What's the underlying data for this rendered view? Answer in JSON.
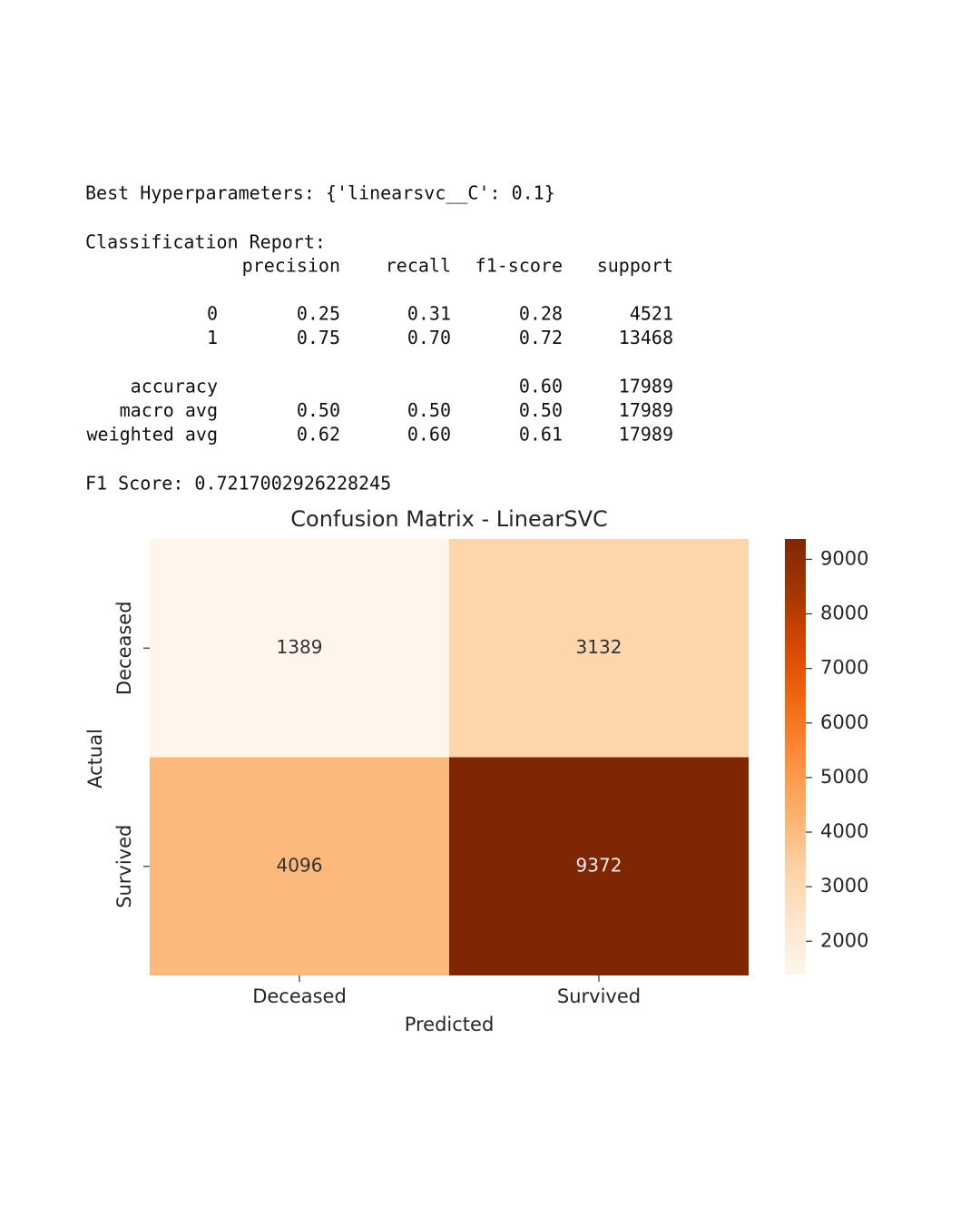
{
  "output": {
    "best_params": "Best Hyperparameters: {'linearsvc__C': 0.1}",
    "report_title": "Classification Report:",
    "report_columns": [
      "precision",
      "recall",
      "f1-score",
      "support"
    ],
    "report_rows": [
      [
        "0",
        "0.25",
        "0.31",
        "0.28",
        "4521"
      ],
      [
        "1",
        "0.75",
        "0.70",
        "0.72",
        "13468"
      ],
      [
        "accuracy",
        null,
        null,
        "0.60",
        "17989"
      ],
      [
        "macro avg",
        "0.50",
        "0.50",
        "0.50",
        "17989"
      ],
      [
        "weighted avg",
        "0.62",
        "0.60",
        "0.61",
        "17989"
      ]
    ],
    "f1_line": "F1 Score: 0.7217002926228245"
  },
  "chart_data": {
    "type": "heatmap",
    "title": "Confusion Matrix - LinearSVC",
    "x_categories": [
      "Deceased",
      "Survived"
    ],
    "y_categories": [
      "Deceased",
      "Survived"
    ],
    "values": [
      [
        1389,
        3132
      ],
      [
        4096,
        9372
      ]
    ],
    "xlabel": "Predicted",
    "ylabel": "Actual",
    "colormap": "Oranges",
    "clim": [
      1389,
      9372
    ],
    "cticks": [
      2000,
      3000,
      4000,
      5000,
      6000,
      7000,
      8000,
      9000
    ]
  }
}
